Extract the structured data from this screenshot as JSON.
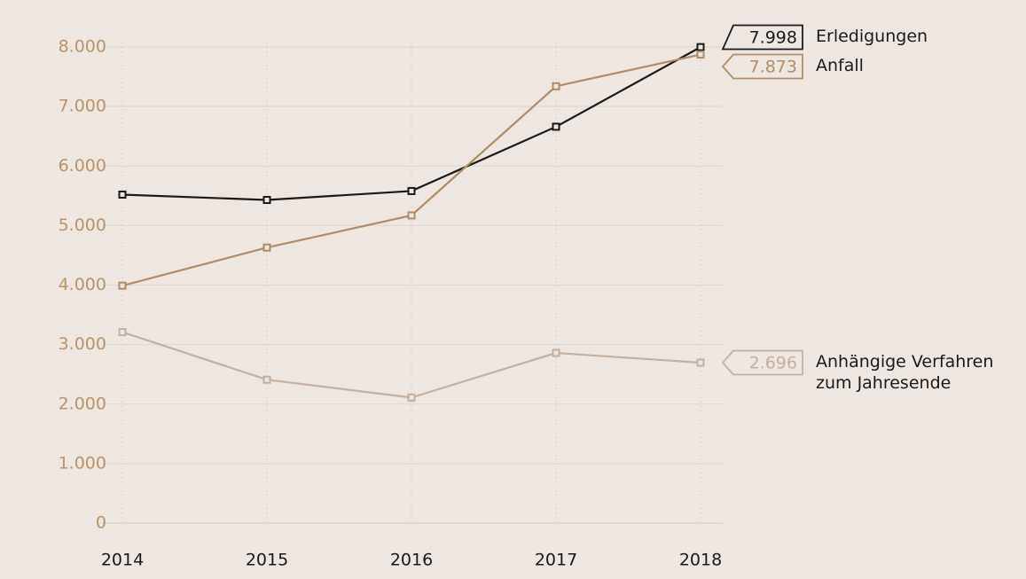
{
  "chart_data": {
    "type": "line",
    "categories": [
      "2014",
      "2015",
      "2016",
      "2017",
      "2018"
    ],
    "series": [
      {
        "name": "Erledigungen",
        "color": "#1a1a1a",
        "values": [
          5520,
          5430,
          5580,
          6660,
          7998
        ],
        "value_labels": [
          null,
          null,
          null,
          null,
          "7.998"
        ]
      },
      {
        "name": "Anfall",
        "color": "#b08c68",
        "values": [
          3990,
          4630,
          5170,
          7340,
          7873
        ],
        "value_labels": [
          null,
          null,
          null,
          null,
          "7.873"
        ]
      },
      {
        "name": "Anhängige Verfahren zum Jahresende",
        "color": "#c4b0a0",
        "values": [
          3210,
          2410,
          2110,
          2860,
          2696
        ],
        "value_labels": [
          null,
          null,
          null,
          null,
          "2.696"
        ]
      }
    ],
    "ylim": [
      0,
      8000
    ],
    "yticks": [
      0,
      {
        "value": 1000,
        "label": "1.000"
      },
      {
        "value": 2000,
        "label": "2.000"
      },
      {
        "value": 3000,
        "label": "3.000"
      },
      {
        "value": 4000,
        "label": "4.000"
      },
      {
        "value": 5000,
        "label": "5.000"
      },
      {
        "value": 6000,
        "label": "6.000"
      },
      {
        "value": 7000,
        "label": "7.000"
      },
      {
        "value": 8000,
        "label": "8.000"
      }
    ],
    "grid": true
  }
}
